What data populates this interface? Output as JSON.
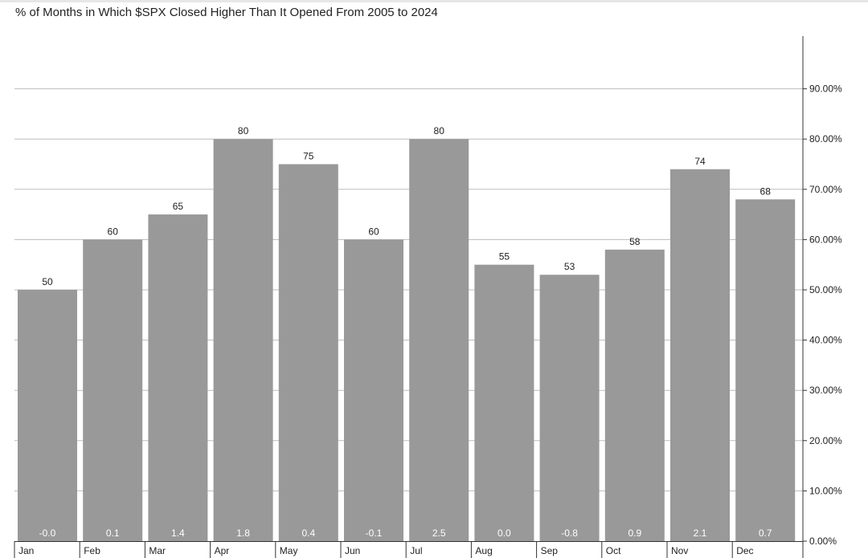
{
  "chart_data": {
    "type": "bar",
    "title": "% of Months in Which $SPX Closed Higher Than It Opened From 2005 to 2024",
    "categories": [
      "Jan",
      "Feb",
      "Mar",
      "Apr",
      "May",
      "Jun",
      "Jul",
      "Aug",
      "Sep",
      "Oct",
      "Nov",
      "Dec"
    ],
    "values": [
      50,
      60,
      65,
      80,
      75,
      60,
      80,
      55,
      53,
      58,
      74,
      68
    ],
    "bottom_labels": [
      "-0.0",
      "0.1",
      "1.4",
      "1.8",
      "0.4",
      "-0.1",
      "2.5",
      "0.0",
      "-0.8",
      "0.9",
      "2.1",
      "0.7"
    ],
    "y_ticks": [
      "0.00%",
      "10.00%",
      "20.00%",
      "30.00%",
      "40.00%",
      "50.00%",
      "60.00%",
      "70.00%",
      "80.00%",
      "90.00%"
    ],
    "ylim": [
      0,
      100
    ],
    "y_axis_side": "right",
    "grid": true,
    "bar_color": "#999999"
  }
}
